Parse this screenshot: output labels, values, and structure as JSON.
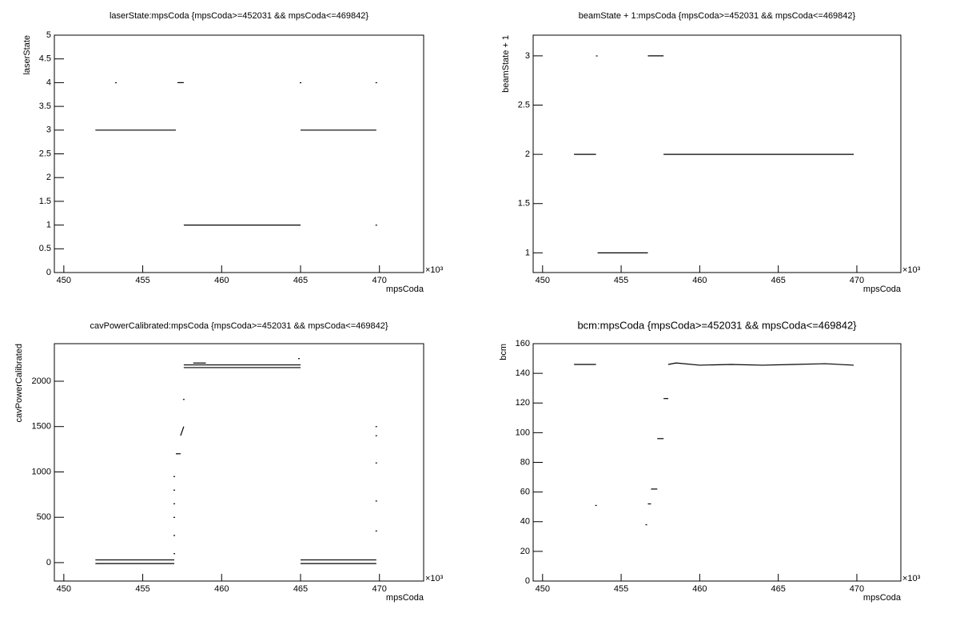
{
  "chart_data": [
    {
      "type": "line",
      "title": "laserState:mpsCoda {mpsCoda>=452031 && mpsCoda<=469842}",
      "x_label": "mpsCoda",
      "y_label": "laserState",
      "x_multiplier": "×10³",
      "x": [
        452.0,
        457.1,
        null,
        457.2,
        457.6,
        null,
        457.6,
        465.0,
        null,
        465.0,
        469.8,
        null,
        453.3,
        null,
        465.0,
        null,
        469.8,
        null,
        469.8
      ],
      "values": [
        3,
        3,
        null,
        4,
        4,
        null,
        1,
        1,
        null,
        3,
        3,
        null,
        4,
        null,
        4,
        null,
        4,
        null,
        1
      ],
      "color": "#000000",
      "xlim": [
        449.4,
        472.8
      ],
      "xticks": [
        450,
        455,
        460,
        465,
        470
      ],
      "ylim": [
        0,
        5
      ],
      "yticks": [
        0,
        0.5,
        1,
        1.5,
        2,
        2.5,
        3,
        3.5,
        4,
        4.5,
        5
      ]
    },
    {
      "type": "line",
      "title": "beamState + 1:mpsCoda {mpsCoda>=452031 && mpsCoda<=469842}",
      "x_label": "mpsCoda",
      "y_label": "beamState + 1",
      "x_multiplier": "×10³",
      "x": [
        452.0,
        453.4,
        null,
        453.45,
        null,
        453.5,
        456.7,
        null,
        456.7,
        457.7,
        null,
        457.7,
        469.8
      ],
      "values": [
        2,
        2,
        null,
        3,
        null,
        1,
        1,
        null,
        3,
        3,
        null,
        2,
        2
      ],
      "color": "#000000",
      "xlim": [
        449.4,
        472.8
      ],
      "xticks": [
        450,
        455,
        460,
        465,
        470
      ],
      "ylim": [
        0.8,
        3.21
      ],
      "yticks": [
        1,
        1.5,
        2,
        2.5,
        3
      ]
    },
    {
      "type": "line",
      "title": "cavPowerCalibrated:mpsCoda {mpsCoda>=452031 && mpsCoda<=469842}",
      "x_label": "mpsCoda",
      "y_label": "cavPowerCalibrated",
      "x_multiplier": "×10³",
      "x": [
        452.0,
        457.0,
        null,
        452.0,
        457.0,
        null,
        457.0,
        null,
        457.0,
        null,
        457.0,
        null,
        457.0,
        null,
        457.0,
        null,
        457.0,
        null,
        457.1,
        457.4,
        null,
        457.4,
        457.6,
        null,
        457.6,
        null,
        457.6,
        465.0,
        null,
        457.6,
        465.0,
        null,
        458.2,
        459.0,
        null,
        464.9,
        null,
        465.0,
        469.8,
        null,
        465.0,
        469.8,
        null,
        469.8,
        null,
        469.8,
        null,
        469.8,
        null,
        469.8,
        null,
        469.8
      ],
      "values": [
        -10,
        -10,
        null,
        30,
        30,
        null,
        100,
        null,
        300,
        null,
        500,
        null,
        650,
        null,
        800,
        null,
        950,
        null,
        1200,
        1200,
        null,
        1400,
        1500,
        null,
        1800,
        null,
        2150,
        2150,
        null,
        2180,
        2180,
        null,
        2200,
        2200,
        null,
        2250,
        null,
        -10,
        -10,
        null,
        30,
        30,
        null,
        1500,
        null,
        1400,
        null,
        1100,
        null,
        680,
        null,
        350
      ],
      "color": "#000000",
      "xlim": [
        449.4,
        472.8
      ],
      "xticks": [
        450,
        455,
        460,
        465,
        470
      ],
      "ylim": [
        -203,
        2414
      ],
      "yticks": [
        0,
        500,
        1000,
        1500,
        2000
      ]
    },
    {
      "type": "line",
      "title": "bcm:mpsCoda {mpsCoda>=452031 && mpsCoda<=469842}",
      "x_label": "mpsCoda",
      "y_label": "bcm",
      "x_multiplier": "×10³",
      "x": [
        452.0,
        453.4,
        null,
        453.4,
        null,
        456.6,
        null,
        456.7,
        456.9,
        null,
        456.9,
        457.3,
        null,
        457.3,
        457.7,
        null,
        457.7,
        458.0,
        null,
        458.0,
        458.5,
        460,
        462,
        464,
        466,
        468,
        469.8
      ],
      "values": [
        146,
        146,
        null,
        51,
        null,
        38,
        null,
        52,
        52,
        null,
        62,
        62,
        null,
        96,
        96,
        null,
        123,
        123,
        null,
        146,
        147,
        145.5,
        146,
        145.5,
        146,
        146.5,
        145.5
      ],
      "color": "#000000",
      "xlim": [
        449.4,
        472.8
      ],
      "xticks": [
        450,
        455,
        460,
        465,
        470
      ],
      "ylim": [
        0,
        160
      ],
      "yticks": [
        0,
        20,
        40,
        60,
        80,
        100,
        120,
        140,
        160
      ]
    }
  ]
}
